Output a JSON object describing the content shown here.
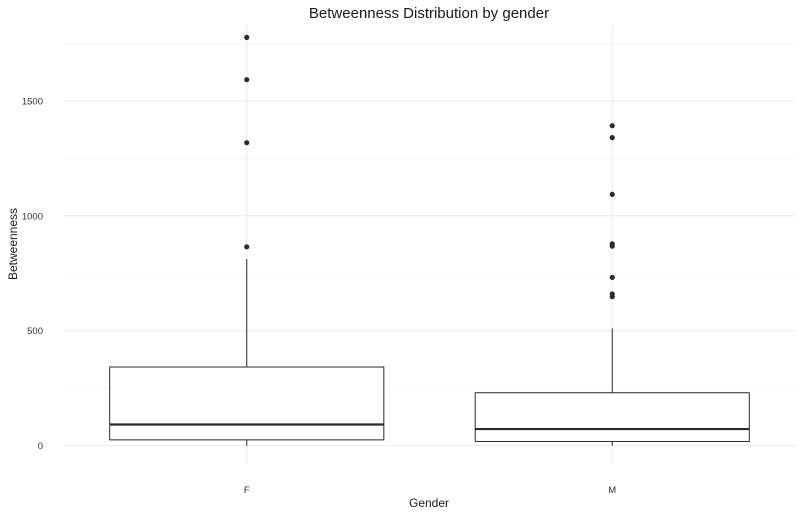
{
  "chart_data": {
    "type": "boxplot",
    "title": "Betweenness Distribution by gender",
    "xlabel": "Gender",
    "ylabel": "Betweenness",
    "categories": [
      "F",
      "M"
    ],
    "yticks": [
      0,
      500,
      1000,
      1500
    ],
    "ylim": [
      -80,
      1830
    ],
    "grid": true,
    "boxes": [
      {
        "category": "F",
        "lower_whisker": 0,
        "q1": 25,
        "median": 92,
        "q3": 342,
        "upper_whisker": 812,
        "outliers": [
          865,
          1318,
          1592,
          1776
        ]
      },
      {
        "category": "M",
        "lower_whisker": 0,
        "q1": 18,
        "median": 72,
        "q3": 230,
        "upper_whisker": 510,
        "outliers": [
          648,
          660,
          732,
          868,
          878,
          1093,
          1340,
          1392
        ]
      }
    ],
    "colors": {
      "box_stroke": "#2b2b2b",
      "outlier": "#2b2b2b",
      "grid_major": "#ebebeb",
      "grid_minor": "#f4f4f4"
    }
  }
}
